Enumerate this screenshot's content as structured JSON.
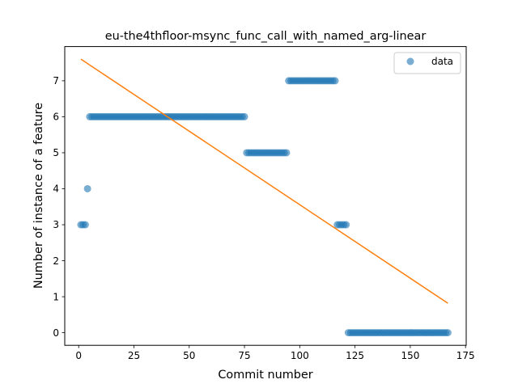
{
  "chart_data": {
    "type": "scatter",
    "title": "eu-the4thfloor-msync_func_call_with_named_arg-linear",
    "xlabel": "Commit number",
    "ylabel": "Number of instance of a feature",
    "xlim": [
      -6.3,
      175.3
    ],
    "ylim": [
      -0.35,
      7.95
    ],
    "xticks": [
      0,
      25,
      50,
      75,
      100,
      125,
      150,
      175
    ],
    "yticks": [
      0,
      1,
      2,
      3,
      4,
      5,
      6,
      7
    ],
    "grid": false,
    "legend": {
      "placement": "top-right",
      "entries": [
        "data"
      ]
    },
    "colors": {
      "data": "#1f77b4",
      "fit": "#ff7f0e"
    },
    "series": [
      {
        "name": "data",
        "kind": "scatter",
        "segments": [
          {
            "x_start": 1,
            "x_end": 3,
            "y": 3
          },
          {
            "x_start": 4,
            "x_end": 4,
            "y": 4
          },
          {
            "x_start": 5,
            "x_end": 75,
            "y": 6
          },
          {
            "x_start": 76,
            "x_end": 94,
            "y": 5
          },
          {
            "x_start": 95,
            "x_end": 116,
            "y": 7
          },
          {
            "x_start": 117,
            "x_end": 121,
            "y": 3
          },
          {
            "x_start": 122,
            "x_end": 167,
            "y": 0
          }
        ]
      },
      {
        "kind": "line",
        "points": [
          [
            1,
            7.6
          ],
          [
            167,
            0.82
          ]
        ]
      }
    ]
  }
}
